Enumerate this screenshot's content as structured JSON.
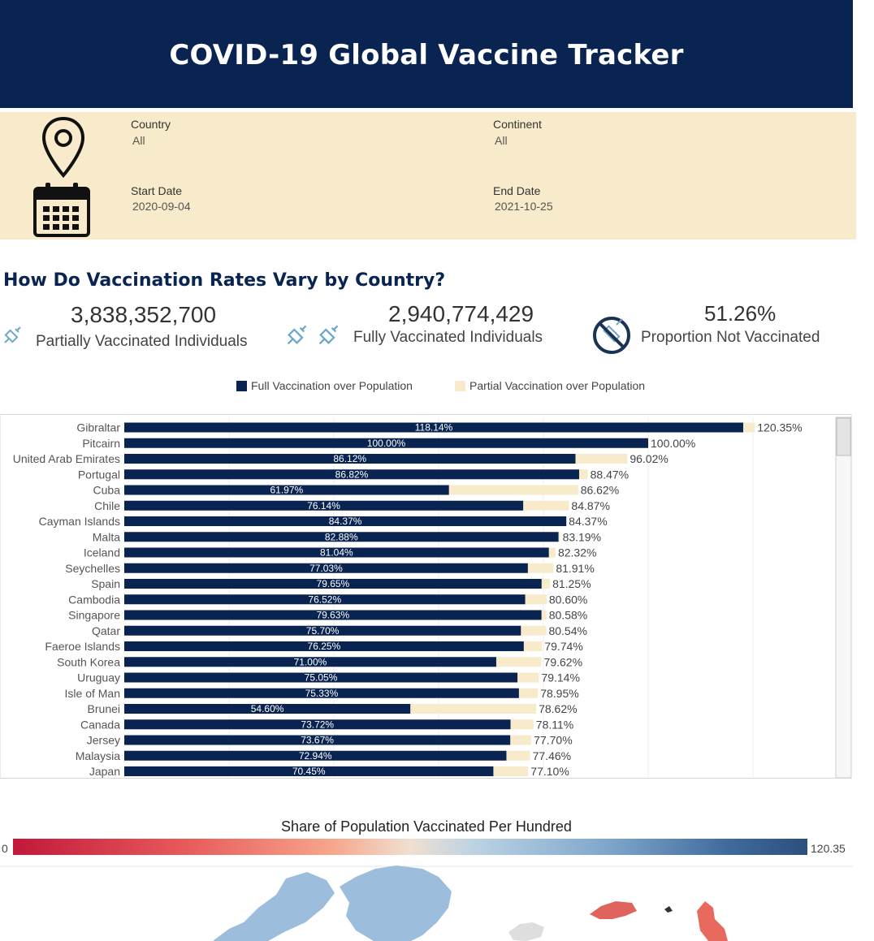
{
  "header": {
    "title": "COVID-19 Global Vaccine Tracker"
  },
  "filters": {
    "country": {
      "label": "Country",
      "value": "All"
    },
    "continent": {
      "label": "Continent",
      "value": "All"
    },
    "start_date": {
      "label": "Start Date",
      "value": "2020-09-04"
    },
    "end_date": {
      "label": "End Date",
      "value": "2021-10-25"
    },
    "icons": [
      "location-pin-icon",
      "calendar-icon"
    ]
  },
  "section_title": "How Do Vaccination Rates Vary by Country?",
  "kpis": [
    {
      "value": "3,838,352,700",
      "label": "Partially Vaccinated Individuals",
      "icon": "syringe-icon"
    },
    {
      "value": "2,940,774,429",
      "label": "Fully Vaccinated Individuals",
      "icon": "syringe-icon"
    },
    {
      "value": "51.26%",
      "label": "Proportion Not Vaccinated",
      "icon": "no-syringe-icon"
    }
  ],
  "legend": {
    "full": "Full Vaccination over Population",
    "partial": "Partial Vaccination over Population"
  },
  "colors": {
    "navy": "#0a2452",
    "cream": "#f8ebcb",
    "header": "#0a2452"
  },
  "chart_data": {
    "type": "bar",
    "orientation": "horizontal",
    "stacked": "overlay",
    "categories": [
      "Gibraltar",
      "Pitcairn",
      "United Arab Emirates",
      "Portugal",
      "Cuba",
      "Chile",
      "Cayman Islands",
      "Malta",
      "Iceland",
      "Seychelles",
      "Spain",
      "Cambodia",
      "Singapore",
      "Qatar",
      "Faeroe Islands",
      "South Korea",
      "Uruguay",
      "Isle of Man",
      "Brunei",
      "Canada",
      "Jersey",
      "Malaysia",
      "Japan"
    ],
    "series": [
      {
        "name": "Full Vaccination over Population",
        "color": "#0a2452",
        "values": [
          118.14,
          100.0,
          86.12,
          86.82,
          61.97,
          76.14,
          84.37,
          82.88,
          81.04,
          77.03,
          79.65,
          76.52,
          79.63,
          75.7,
          76.25,
          71.0,
          75.05,
          75.33,
          54.6,
          73.72,
          73.67,
          72.94,
          70.45
        ],
        "labels": [
          "118.14%",
          "100.00%",
          "86.12%",
          "86.82%",
          "61.97%",
          "76.14%",
          "84.37%",
          "82.88%",
          "81.04%",
          "77.03%",
          "79.65%",
          "76.52%",
          "79.63%",
          "75.70%",
          "76.25%",
          "71.00%",
          "75.05%",
          "75.33%",
          "54.60%",
          "73.72%",
          "73.67%",
          "72.94%",
          "70.45%"
        ]
      },
      {
        "name": "Partial Vaccination over Population",
        "color": "#f8ebcb",
        "values": [
          120.35,
          100.0,
          96.02,
          88.47,
          86.62,
          84.87,
          84.37,
          83.19,
          82.32,
          81.91,
          81.25,
          80.6,
          80.58,
          80.54,
          79.74,
          79.62,
          79.14,
          78.95,
          78.62,
          78.11,
          77.7,
          77.46,
          77.1
        ],
        "labels": [
          "120.35%",
          "100.00%",
          "96.02%",
          "88.47%",
          "86.62%",
          "84.87%",
          "84.37%",
          "83.19%",
          "82.32%",
          "81.91%",
          "81.25%",
          "80.60%",
          "80.58%",
          "80.54%",
          "79.74%",
          "79.62%",
          "79.14%",
          "78.95%",
          "78.62%",
          "78.11%",
          "77.70%",
          "77.46%",
          "77.10%"
        ]
      }
    ],
    "xlim": [
      0,
      135
    ],
    "grid": true,
    "legend_position": "top"
  },
  "map": {
    "title": "Share of Population Vaccinated Per Hundred",
    "scale_min": "0",
    "scale_max": "120.35"
  }
}
